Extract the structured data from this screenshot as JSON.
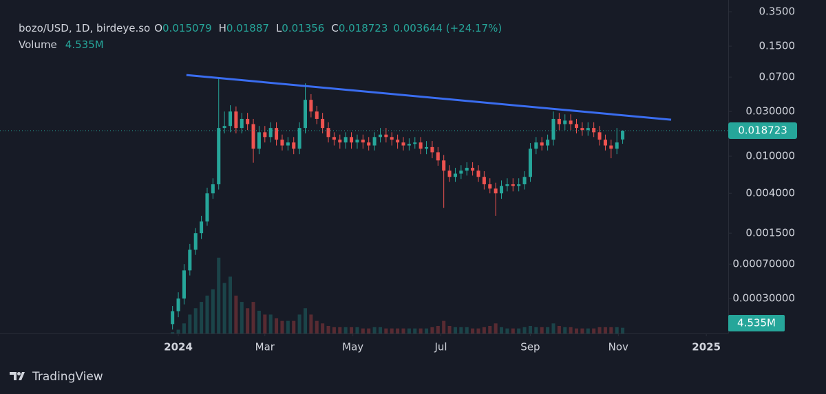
{
  "chart_data": {
    "type": "candlestick",
    "title": "bozo/USD, 1D, birdeye.so",
    "legend": {
      "o": "O",
      "h": "H",
      "l": "L",
      "c": "C",
      "change": "0.003644 (+24.17%)",
      "volume_title": "Volume"
    },
    "volume_label": "4.535M",
    "up_color": "#26a69a",
    "down_color": "#ef5350",
    "log_scale": true,
    "grid": false,
    "open": [
      0.00016,
      0.00022,
      0.0003,
      0.0006,
      0.001,
      0.0015,
      0.002,
      0.004,
      0.005,
      0.02,
      0.021,
      0.03,
      0.02,
      0.025,
      0.022,
      0.012,
      0.018,
      0.016,
      0.02,
      0.015,
      0.013,
      0.014,
      0.012,
      0.02,
      0.04,
      0.03,
      0.025,
      0.02,
      0.016,
      0.015,
      0.014,
      0.016,
      0.014,
      0.015,
      0.014,
      0.013,
      0.016,
      0.017,
      0.016,
      0.015,
      0.014,
      0.013,
      0.0135,
      0.014,
      0.012,
      0.0125,
      0.011,
      0.009,
      0.007,
      0.006,
      0.0065,
      0.007,
      0.0075,
      0.007,
      0.006,
      0.005,
      0.0045,
      0.004,
      0.0048,
      0.005,
      0.0048,
      0.005,
      0.006,
      0.012,
      0.014,
      0.013,
      0.015,
      0.025,
      0.022,
      0.024,
      0.022,
      0.02,
      0.019,
      0.02,
      0.018,
      0.015,
      0.013,
      0.012,
      0.015079
    ],
    "high": [
      0.00025,
      0.00035,
      0.0007,
      0.00115,
      0.0017,
      0.0023,
      0.0046,
      0.0058,
      0.068,
      0.03,
      0.035,
      0.034,
      0.029,
      0.029,
      0.025,
      0.021,
      0.021,
      0.023,
      0.023,
      0.017,
      0.016,
      0.016,
      0.023,
      0.06,
      0.046,
      0.0345,
      0.029,
      0.023,
      0.018,
      0.017,
      0.018,
      0.018,
      0.017,
      0.017,
      0.016,
      0.018,
      0.02,
      0.02,
      0.018,
      0.017,
      0.016,
      0.0155,
      0.016,
      0.016,
      0.0145,
      0.0145,
      0.0125,
      0.0103,
      0.008,
      0.0075,
      0.008,
      0.0086,
      0.0086,
      0.008,
      0.0069,
      0.0058,
      0.0052,
      0.0055,
      0.0058,
      0.0058,
      0.0058,
      0.0069,
      0.0138,
      0.016,
      0.016,
      0.017,
      0.03,
      0.029,
      0.028,
      0.028,
      0.025,
      0.023,
      0.023,
      0.023,
      0.021,
      0.017,
      0.015,
      0.02,
      0.01887
    ],
    "low": [
      0.00014,
      0.00019,
      0.00026,
      0.00053,
      0.00088,
      0.0013,
      0.0018,
      0.0035,
      0.0044,
      0.0175,
      0.018,
      0.0175,
      0.0175,
      0.019,
      0.0085,
      0.0105,
      0.014,
      0.014,
      0.013,
      0.0115,
      0.0115,
      0.0105,
      0.0105,
      0.0175,
      0.026,
      0.022,
      0.0175,
      0.014,
      0.013,
      0.012,
      0.012,
      0.012,
      0.012,
      0.012,
      0.0115,
      0.0115,
      0.014,
      0.014,
      0.013,
      0.012,
      0.0115,
      0.0115,
      0.012,
      0.0105,
      0.0105,
      0.0095,
      0.0079,
      0.0028,
      0.0053,
      0.0053,
      0.0057,
      0.0062,
      0.0062,
      0.0053,
      0.0044,
      0.004,
      0.0023,
      0.0035,
      0.0042,
      0.0042,
      0.0042,
      0.0044,
      0.0053,
      0.0105,
      0.0115,
      0.0115,
      0.013,
      0.019,
      0.019,
      0.019,
      0.0175,
      0.0165,
      0.0165,
      0.016,
      0.013,
      0.0115,
      0.0095,
      0.0105,
      0.01356
    ],
    "close": [
      0.00022,
      0.0003,
      0.0006,
      0.001,
      0.0015,
      0.002,
      0.004,
      0.005,
      0.02,
      0.021,
      0.03,
      0.02,
      0.025,
      0.022,
      0.012,
      0.018,
      0.016,
      0.02,
      0.015,
      0.013,
      0.014,
      0.012,
      0.02,
      0.04,
      0.03,
      0.025,
      0.02,
      0.016,
      0.015,
      0.014,
      0.016,
      0.014,
      0.015,
      0.014,
      0.013,
      0.016,
      0.017,
      0.016,
      0.015,
      0.014,
      0.013,
      0.0135,
      0.014,
      0.012,
      0.0125,
      0.011,
      0.009,
      0.007,
      0.006,
      0.0065,
      0.007,
      0.0075,
      0.007,
      0.006,
      0.005,
      0.0045,
      0.004,
      0.0048,
      0.005,
      0.0048,
      0.005,
      0.006,
      0.012,
      0.014,
      0.013,
      0.015,
      0.025,
      0.022,
      0.024,
      0.022,
      0.02,
      0.019,
      0.02,
      0.018,
      0.015,
      0.013,
      0.012,
      0.014,
      0.018723
    ],
    "volume": [
      1,
      3,
      8,
      15,
      20,
      25,
      30,
      35,
      60,
      40,
      45,
      30,
      25,
      20,
      25,
      18,
      15,
      15,
      12,
      10,
      10,
      10,
      15,
      20,
      15,
      10,
      8,
      6,
      5,
      5,
      5,
      5,
      5,
      4,
      4,
      5,
      5,
      4,
      4,
      4,
      4,
      4,
      4,
      4,
      4,
      5,
      6,
      10,
      6,
      5,
      5,
      5,
      4,
      4,
      5,
      6,
      8,
      5,
      4,
      4,
      4,
      5,
      6,
      5,
      5,
      5,
      8,
      6,
      5,
      5,
      4,
      4,
      4,
      4,
      5,
      5,
      5,
      5,
      4.535
    ],
    "volume_ylim": [
      0,
      66
    ],
    "trendline": {
      "x": [
        2.4,
        86.4
      ],
      "y": [
        0.0736,
        0.0245
      ],
      "color": "#3a6df0"
    },
    "xlim": [
      -29.9,
      96.3
    ],
    "xticks": [
      {
        "value": 1,
        "label": "2024"
      },
      {
        "value": 16,
        "label": "Mar"
      },
      {
        "value": 31.25,
        "label": "May"
      },
      {
        "value": 46.5,
        "label": "Jul"
      },
      {
        "value": 62,
        "label": "Sep"
      },
      {
        "value": 77.25,
        "label": "Nov"
      },
      {
        "value": 92.5,
        "label": "2025"
      }
    ],
    "ylim": [
      0.000127,
      0.467
    ],
    "yticks": [
      {
        "value": 0.35,
        "label": "0.3500"
      },
      {
        "value": 0.15,
        "label": "0.1500"
      },
      {
        "value": 0.07,
        "label": "0.0700"
      },
      {
        "value": 0.03,
        "label": "0.030000"
      },
      {
        "value": 0.01,
        "label": "0.010000"
      },
      {
        "value": 0.004,
        "label": "0.004000"
      },
      {
        "value": 0.0015,
        "label": "0.001500"
      },
      {
        "value": 0.0007,
        "label": "0.00070000"
      },
      {
        "value": 0.0003,
        "label": "0.00030000"
      }
    ]
  },
  "footer": {
    "brand": "TradingView"
  }
}
